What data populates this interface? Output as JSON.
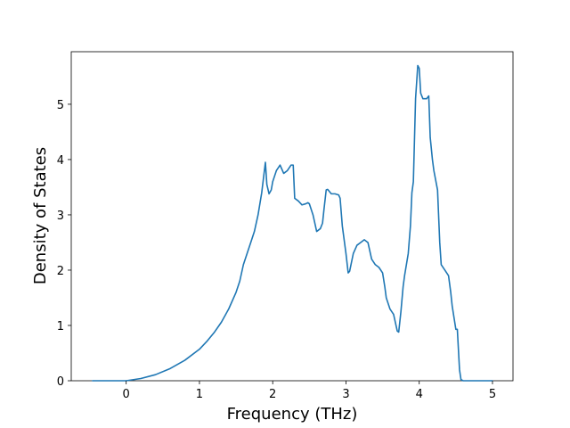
{
  "chart_data": {
    "type": "line",
    "title": "",
    "xlabel": "Frequency (THz)",
    "ylabel": "Density of States",
    "xlim": [
      -0.75,
      5.28
    ],
    "ylim": [
      0,
      5.95
    ],
    "xticks": [
      0,
      1,
      2,
      3,
      4,
      5
    ],
    "yticks": [
      0,
      1,
      2,
      3,
      4,
      5
    ],
    "xtick_labels": [
      "0",
      "1",
      "2",
      "3",
      "4",
      "5"
    ],
    "ytick_labels": [
      "0",
      "1",
      "2",
      "3",
      "4",
      "5"
    ],
    "grid": false,
    "line_color": "#1f77b4",
    "series": [
      {
        "x": [
          -0.46,
          0.0,
          0.2,
          0.4,
          0.6,
          0.8,
          1.0,
          1.1,
          1.2,
          1.3,
          1.4,
          1.5,
          1.55,
          1.6,
          1.65,
          1.7,
          1.75,
          1.8,
          1.85,
          1.9,
          1.92,
          1.95,
          1.98,
          2.0,
          2.05,
          2.1,
          2.15,
          2.2,
          2.25,
          2.28,
          2.3,
          2.35,
          2.4,
          2.45,
          2.48,
          2.5,
          2.55,
          2.6,
          2.65,
          2.68,
          2.7,
          2.73,
          2.75,
          2.8,
          2.85,
          2.9,
          2.92,
          2.95,
          3.0,
          3.03,
          3.05,
          3.1,
          3.15,
          3.2,
          3.25,
          3.3,
          3.35,
          3.4,
          3.45,
          3.5,
          3.53,
          3.55,
          3.6,
          3.65,
          3.7,
          3.72,
          3.75,
          3.78,
          3.8,
          3.85,
          3.88,
          3.9,
          3.92,
          3.95,
          3.98,
          4.0,
          4.02,
          4.05,
          4.08,
          4.1,
          4.13,
          4.15,
          4.18,
          4.2,
          4.25,
          4.28,
          4.3,
          4.35,
          4.4,
          4.43,
          4.45,
          4.5,
          4.52,
          4.55,
          4.57,
          4.6,
          5.0
        ],
        "y": [
          0.0,
          0.0,
          0.04,
          0.11,
          0.22,
          0.37,
          0.57,
          0.71,
          0.87,
          1.06,
          1.3,
          1.6,
          1.8,
          2.1,
          2.3,
          2.5,
          2.7,
          3.0,
          3.4,
          3.95,
          3.55,
          3.38,
          3.45,
          3.6,
          3.8,
          3.9,
          3.75,
          3.8,
          3.9,
          3.9,
          3.3,
          3.25,
          3.18,
          3.2,
          3.22,
          3.2,
          3.0,
          2.7,
          2.75,
          2.85,
          3.1,
          3.45,
          3.46,
          3.38,
          3.38,
          3.36,
          3.3,
          2.8,
          2.3,
          1.95,
          1.98,
          2.3,
          2.45,
          2.5,
          2.55,
          2.5,
          2.2,
          2.1,
          2.05,
          1.95,
          1.7,
          1.5,
          1.3,
          1.2,
          0.9,
          0.88,
          1.25,
          1.7,
          1.9,
          2.3,
          2.8,
          3.4,
          3.6,
          5.1,
          5.7,
          5.65,
          5.2,
          5.1,
          5.1,
          5.1,
          5.15,
          4.4,
          4.0,
          3.8,
          3.45,
          2.5,
          2.1,
          2.0,
          1.9,
          1.6,
          1.35,
          0.93,
          0.93,
          0.2,
          0.02,
          0.0,
          0.0
        ]
      }
    ]
  }
}
